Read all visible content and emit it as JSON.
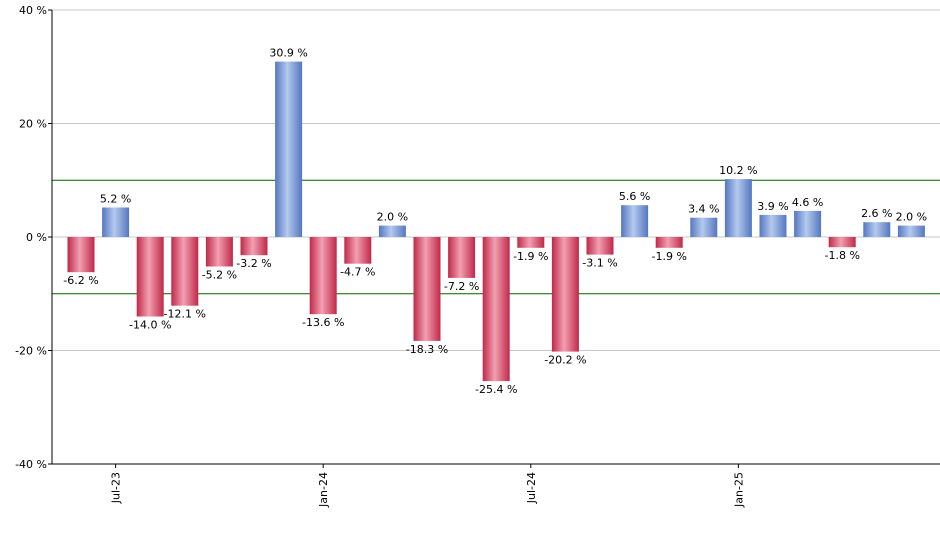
{
  "chart_data": {
    "type": "bar",
    "categories": [
      "2023-06",
      "2023-07",
      "2023-08",
      "2023-09",
      "2023-10",
      "2023-11",
      "2023-12",
      "2024-01",
      "2024-02",
      "2024-03",
      "2024-04",
      "2024-05",
      "2024-06",
      "2024-07",
      "2024-08",
      "2024-09",
      "2024-10",
      "2024-11",
      "2024-12",
      "2025-01",
      "2025-02",
      "2025-03",
      "2025-04",
      "2025-05",
      "2025-06"
    ],
    "values": [
      -6.2,
      5.2,
      -14.0,
      -12.1,
      -5.2,
      -3.2,
      30.9,
      -13.6,
      -4.7,
      2.0,
      -18.3,
      -7.2,
      -25.4,
      -1.9,
      -20.2,
      -3.1,
      5.6,
      -1.9,
      3.4,
      10.2,
      3.9,
      4.6,
      -1.8,
      2.6,
      2.0
    ],
    "value_labels": [
      "-6.2 %",
      "5.2 %",
      "-14.0 %",
      "-12.1 %",
      "-5.2 %",
      "-3.2 %",
      "30.9 %",
      "-13.6 %",
      "-4.7 %",
      "2.0 %",
      "-18.3 %",
      "-7.2 %",
      "-25.4 %",
      "-1.9 %",
      "-20.2 %",
      "-3.1 %",
      "5.6 %",
      "-1.9 %",
      "3.4 %",
      "10.2 %",
      "3.9 %",
      "4.6 %",
      "-1.8 %",
      "2.6 %",
      "2.0 %"
    ],
    "ylim": [
      -40,
      40
    ],
    "yticks": [
      -40,
      -20,
      0,
      20,
      40
    ],
    "ytick_labels": [
      "-40 %",
      "-20 %",
      "0 %",
      "20 %",
      "40 %"
    ],
    "xtick_labels": [
      {
        "category_index": 1,
        "label": "Jul-23"
      },
      {
        "category_index": 7,
        "label": "Jan-24"
      },
      {
        "category_index": 13,
        "label": "Jul-24"
      },
      {
        "category_index": 19,
        "label": "Jan-25"
      }
    ],
    "reference_lines": [
      10,
      -10
    ],
    "grid": true,
    "legend": "none",
    "colors": {
      "positive_light": "#b4c9ee",
      "positive_dark": "#5577c0",
      "negative_light": "#f2a0b2",
      "negative_dark": "#c02848",
      "gridline": "#c8c8c8",
      "reference_line": "#006400",
      "axis": "#000000"
    }
  }
}
